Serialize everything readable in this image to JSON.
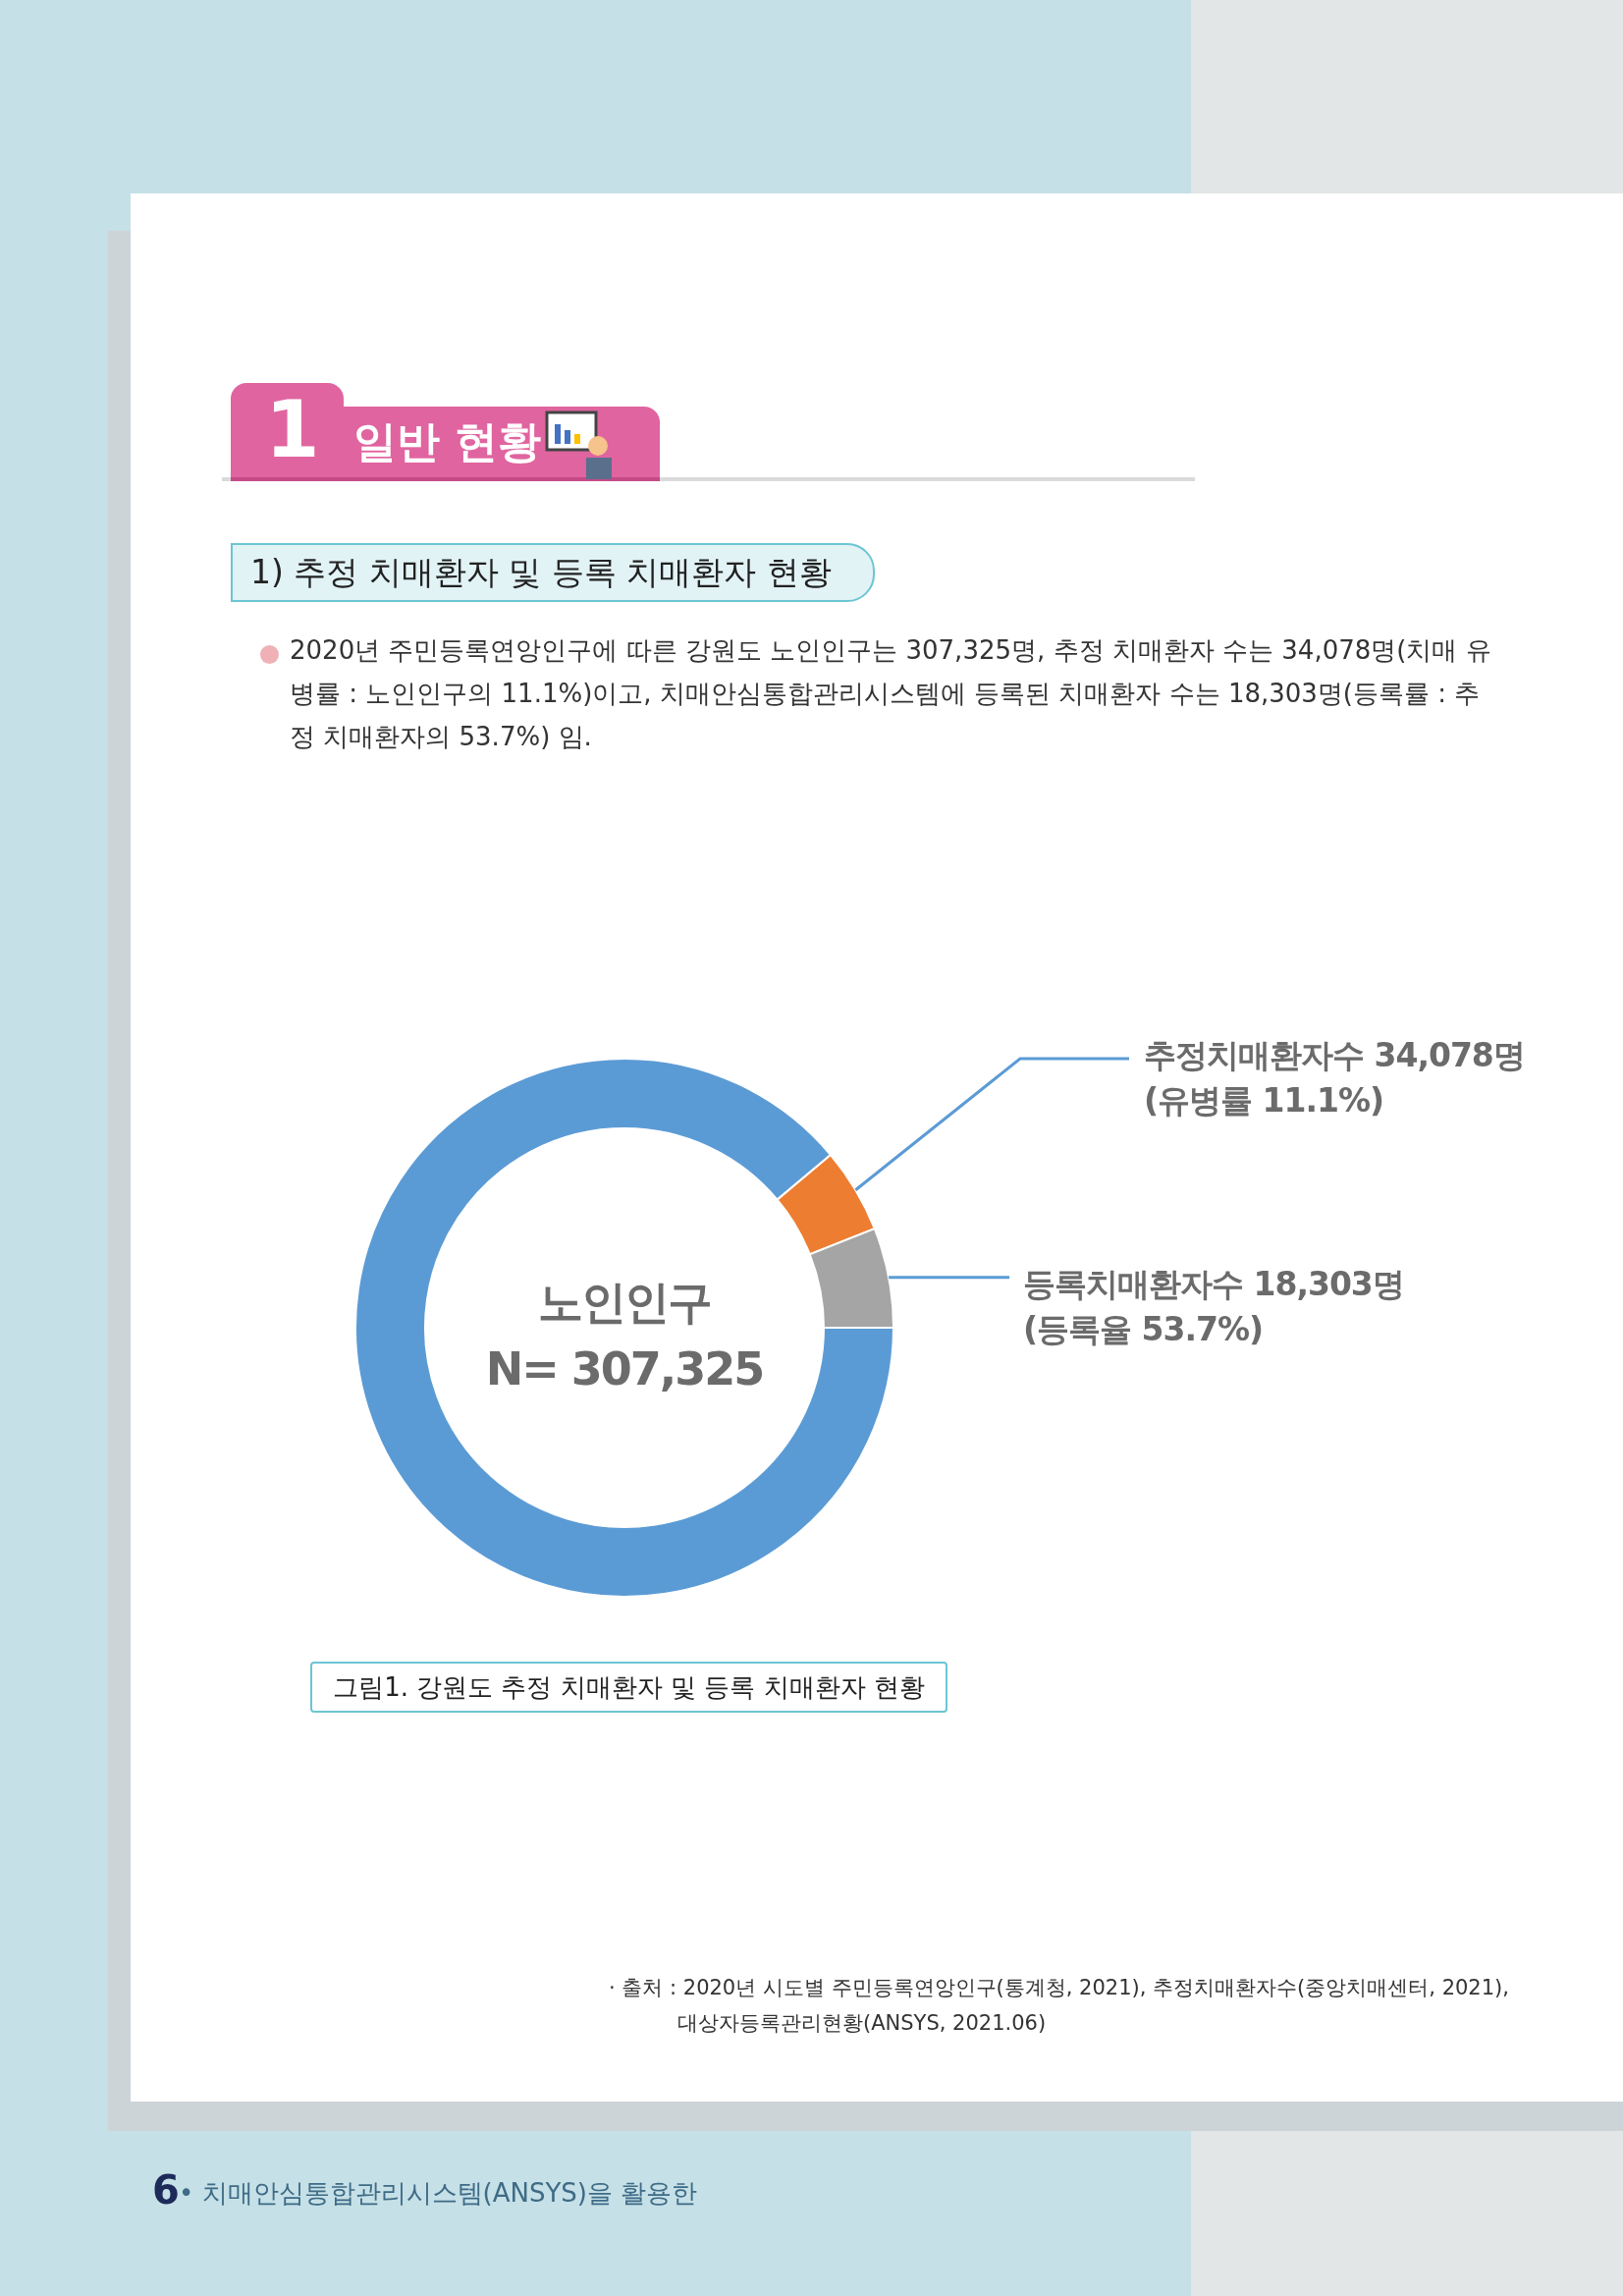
{
  "chart_data": {
    "type": "donut",
    "title": "그림1. 강원도 추정 치매환자 및 등록 치매환자 현황",
    "categories": [
      null,
      null,
      null
    ],
    "values": [
      88.9,
      5.1,
      6.0
    ],
    "colors": [
      "#5b9bd5",
      "#ed7d31",
      "#a5a5a5"
    ],
    "annotations": [
      "1",
      "일반 현황",
      "1) 추정 치매환자 및 등록 치매환자 현황",
      "2020년 주민등록연앙인구에 따른 강원도 노인인구는 307,325명, 추정 치매환자 수는 34,078명(치매 유병률 : 노인인구의 11.1%)이고, 치매안심통합관리시스템에 등록된 치매환자 수는 18,303명(등록률 : 추정 치매환자의 53.7%) 임.",
      "노인인구\nN= 307,325",
      "추정치매환자수 34,078명\n(유병률 11.1%)",
      "등록치매환자수 18,303명\n(등록율 53.7%)",
      "· 출처 : 2020년 시도별 주민등록연앙인구(통계청, 2021), 추정치매환자수(중앙치매센터, 2021),\n대상자등록관리현황(ANSYS, 2021.06)",
      "6",
      "• 치매안심통합관리시스템(ANSYS)을 활용한"
    ]
  }
}
